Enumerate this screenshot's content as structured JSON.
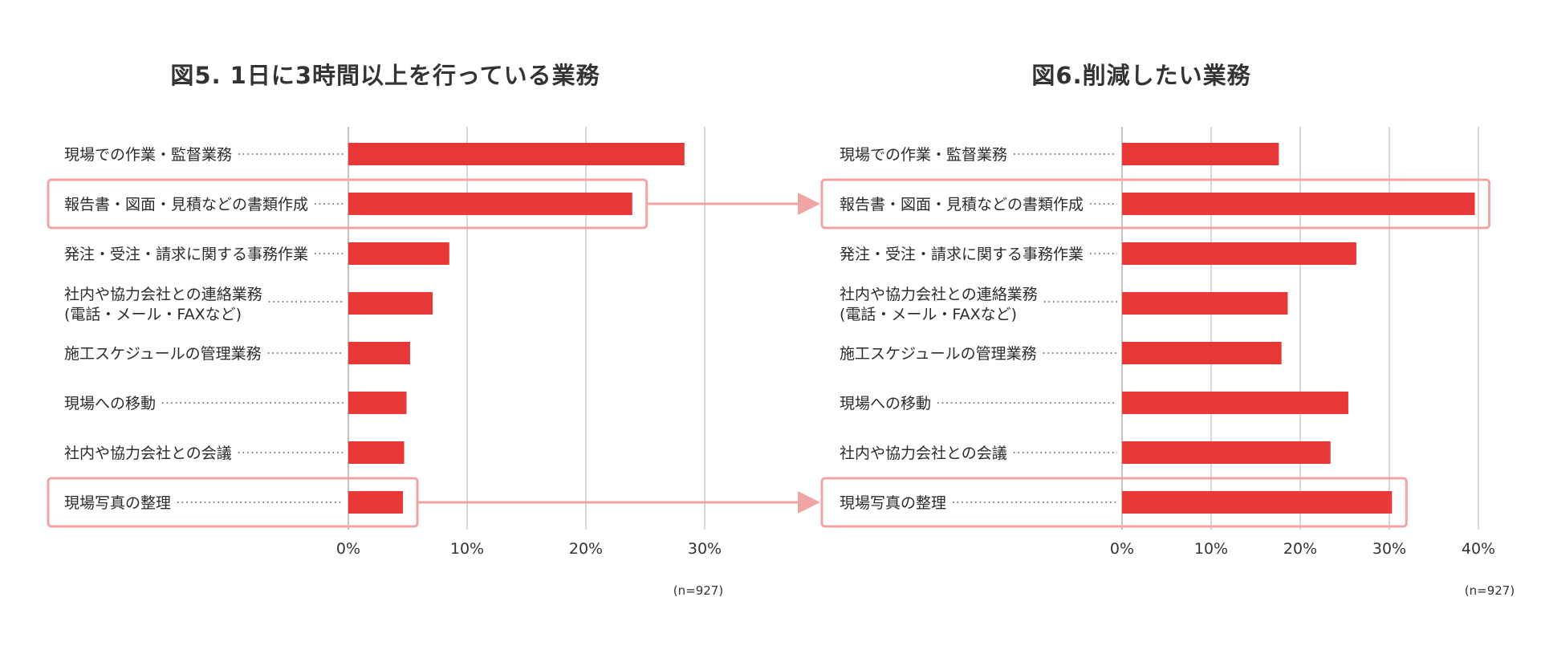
{
  "colors": {
    "bar": "#e83838",
    "highlight": "#f0a5a5"
  },
  "chart_data": [
    {
      "type": "bar",
      "orientation": "horizontal",
      "title": "図5. 1日に3時間以上を行っている業務",
      "categories": [
        [
          "現場での作業・監督業務"
        ],
        [
          "報告書・図面・見積などの書類作成"
        ],
        [
          "発注・受注・請求に関する事務作業"
        ],
        [
          "社内や協力会社との連絡業務",
          "(電話・メール・FAXなど)"
        ],
        [
          "施工スケジュールの管理業務"
        ],
        [
          "現場への移動"
        ],
        [
          "社内や協力会社との会議"
        ],
        [
          "現場写真の整理"
        ]
      ],
      "values": [
        28.3,
        23.9,
        8.5,
        7.1,
        5.2,
        4.9,
        4.7,
        4.6
      ],
      "xlim": [
        0,
        30
      ],
      "ticks": [
        "0%",
        "10%",
        "20%",
        "30%"
      ],
      "tick_values": [
        0,
        10,
        20,
        30
      ],
      "note": "(n=927)",
      "highlighted": [
        1,
        7
      ],
      "grid": true
    },
    {
      "type": "bar",
      "orientation": "horizontal",
      "title": "図6.削減したい業務",
      "categories": [
        [
          "現場での作業・監督業務"
        ],
        [
          "報告書・図面・見積などの書類作成"
        ],
        [
          "発注・受注・請求に関する事務作業"
        ],
        [
          "社内や協力会社との連絡業務",
          "(電話・メール・FAXなど)"
        ],
        [
          "施工スケジュールの管理業務"
        ],
        [
          "現場への移動"
        ],
        [
          "社内や協力会社との会議"
        ],
        [
          "現場写真の整理"
        ]
      ],
      "values": [
        17.6,
        39.6,
        26.3,
        18.6,
        17.9,
        25.4,
        23.4,
        30.3
      ],
      "xlim": [
        0,
        40
      ],
      "ticks": [
        "0%",
        "10%",
        "20%",
        "30%",
        "40%"
      ],
      "tick_values": [
        0,
        10,
        20,
        30,
        40
      ],
      "note": "(n=927)",
      "highlighted": [
        1,
        7
      ],
      "grid": true
    }
  ]
}
